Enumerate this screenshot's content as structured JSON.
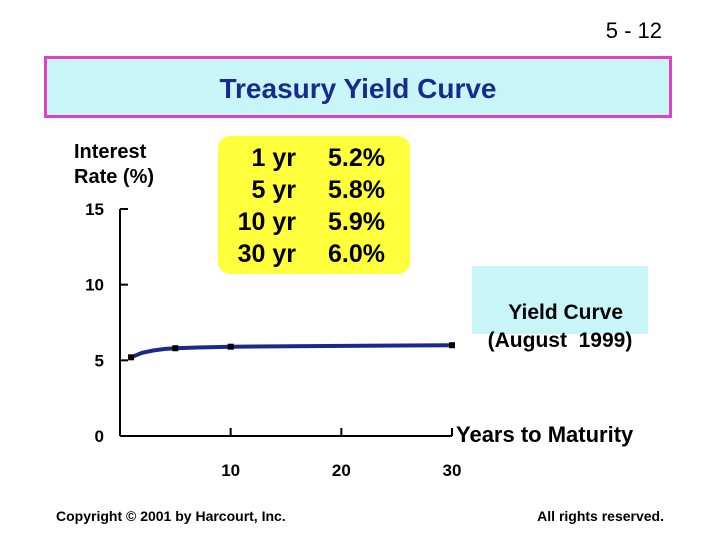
{
  "slide_number": "5 - 12",
  "footer": {
    "copyright": "Copyright © 2001 by Harcourt, Inc.",
    "rights": "All rights reserved."
  },
  "colors": {
    "title_bg": "#c8f5f8",
    "title_border": "#e040c8",
    "title_text": "#1a2a8c",
    "table_bg": "#ffff3c",
    "curve": "#1a2a8c"
  },
  "chart_data": {
    "type": "line",
    "title": "Treasury Yield Curve",
    "ylabel": "Interest\nRate (%)",
    "xlabel": "Years to Maturity",
    "ylim": [
      0,
      15
    ],
    "xlim": [
      0,
      30
    ],
    "y_ticks": [
      0,
      5,
      10,
      15
    ],
    "y_tick_labels": [
      "0",
      "5",
      "10",
      "15"
    ],
    "x_ticks": [
      10,
      20,
      30
    ],
    "x_tick_labels": [
      "10",
      "20",
      "30"
    ],
    "grid": false,
    "series": [
      {
        "name": "Yield Curve\n(August  1999)",
        "x": [
          1,
          2,
          3,
          4,
          5,
          7,
          10,
          30
        ],
        "y": [
          5.2,
          5.5,
          5.65,
          5.75,
          5.8,
          5.85,
          5.9,
          6.0
        ],
        "markers_at": [
          1,
          5,
          10,
          30
        ]
      }
    ],
    "table": {
      "maturities": [
        "1 yr",
        "5 yr",
        "10 yr",
        "30 yr"
      ],
      "rates": [
        "5.2%",
        "5.8%",
        "5.9%",
        "6.0%"
      ]
    }
  }
}
